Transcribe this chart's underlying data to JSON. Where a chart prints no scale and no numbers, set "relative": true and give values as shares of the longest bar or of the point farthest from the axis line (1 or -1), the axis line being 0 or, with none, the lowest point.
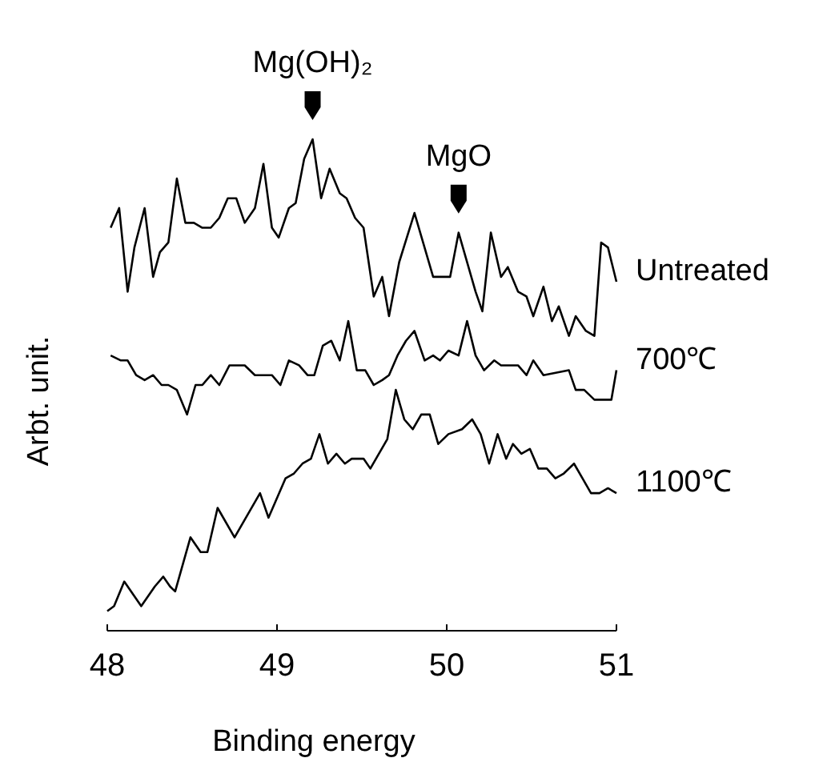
{
  "chart_data": {
    "type": "line",
    "relative": true,
    "xlabel": "Binding energy",
    "ylabel": "Arbt. unit.",
    "xlim": [
      48,
      51
    ],
    "xticks": [
      48,
      49,
      50,
      51
    ],
    "annotations": [
      {
        "text": "Mg(OH)₂",
        "x": 49.21,
        "y": 1.0
      },
      {
        "text": "MgO",
        "x": 50.07,
        "y": 0.81
      }
    ],
    "series": [
      {
        "name": "Untreated",
        "color": "#000000",
        "x": [
          48.02,
          48.07,
          48.12,
          48.16,
          48.22,
          48.27,
          48.31,
          48.36,
          48.41,
          48.46,
          48.51,
          48.56,
          48.61,
          48.66,
          48.71,
          48.76,
          48.81,
          48.87,
          48.92,
          48.97,
          49.01,
          49.07,
          49.11,
          49.16,
          49.21,
          49.26,
          49.31,
          49.37,
          49.41,
          49.46,
          49.51,
          49.57,
          49.62,
          49.66,
          49.72,
          49.81,
          49.92,
          50.02,
          50.07,
          50.17,
          50.21,
          50.26,
          50.32,
          50.36,
          50.42,
          50.47,
          50.51,
          50.57,
          50.62,
          50.66,
          50.72,
          50.76,
          50.82,
          50.87,
          50.91,
          50.95,
          51.0
        ],
        "values": [
          0.82,
          0.86,
          0.69,
          0.78,
          0.86,
          0.72,
          0.77,
          0.79,
          0.92,
          0.83,
          0.83,
          0.82,
          0.82,
          0.84,
          0.88,
          0.88,
          0.83,
          0.86,
          0.95,
          0.82,
          0.8,
          0.86,
          0.87,
          0.96,
          1.0,
          0.88,
          0.94,
          0.89,
          0.88,
          0.84,
          0.82,
          0.68,
          0.72,
          0.64,
          0.75,
          0.85,
          0.72,
          0.72,
          0.81,
          0.69,
          0.65,
          0.81,
          0.72,
          0.74,
          0.69,
          0.68,
          0.64,
          0.7,
          0.63,
          0.66,
          0.6,
          0.64,
          0.61,
          0.6,
          0.79,
          0.78,
          0.71
        ]
      },
      {
        "name": "700℃",
        "color": "#000000",
        "x": [
          48.02,
          48.08,
          48.12,
          48.17,
          48.22,
          48.27,
          48.32,
          48.36,
          48.41,
          48.47,
          48.52,
          48.56,
          48.61,
          48.66,
          48.72,
          48.77,
          48.81,
          48.87,
          48.92,
          48.97,
          49.02,
          49.07,
          49.13,
          49.18,
          49.22,
          49.27,
          49.32,
          49.37,
          49.42,
          49.47,
          49.52,
          49.57,
          49.62,
          49.66,
          49.71,
          49.76,
          49.81,
          49.87,
          49.92,
          49.96,
          50.01,
          50.07,
          50.12,
          50.17,
          50.22,
          50.28,
          50.32,
          50.42,
          50.47,
          50.51,
          50.57,
          50.72,
          50.76,
          50.81,
          50.87,
          50.91,
          50.97,
          51.0
        ],
        "values": [
          0.56,
          0.55,
          0.55,
          0.52,
          0.51,
          0.52,
          0.5,
          0.5,
          0.49,
          0.44,
          0.5,
          0.5,
          0.52,
          0.5,
          0.54,
          0.54,
          0.54,
          0.52,
          0.52,
          0.52,
          0.5,
          0.55,
          0.54,
          0.52,
          0.52,
          0.58,
          0.59,
          0.55,
          0.63,
          0.53,
          0.53,
          0.5,
          0.51,
          0.52,
          0.56,
          0.59,
          0.61,
          0.55,
          0.56,
          0.55,
          0.57,
          0.56,
          0.63,
          0.56,
          0.53,
          0.55,
          0.54,
          0.54,
          0.52,
          0.55,
          0.52,
          0.53,
          0.49,
          0.49,
          0.47,
          0.47,
          0.47,
          0.53
        ]
      },
      {
        "name": "1100℃",
        "color": "#000000",
        "x": [
          48.0,
          48.04,
          48.1,
          48.2,
          48.28,
          48.33,
          48.37,
          48.4,
          48.49,
          48.55,
          48.59,
          48.65,
          48.75,
          48.9,
          48.95,
          49.05,
          49.1,
          49.15,
          49.2,
          49.25,
          49.3,
          49.35,
          49.4,
          49.44,
          49.51,
          49.55,
          49.65,
          49.7,
          49.75,
          49.8,
          49.85,
          49.9,
          49.95,
          50.01,
          50.09,
          50.15,
          50.2,
          50.25,
          50.3,
          50.35,
          50.39,
          50.44,
          50.49,
          50.54,
          50.59,
          50.64,
          50.69,
          50.75,
          50.8,
          50.85,
          50.9,
          50.95,
          51.0
        ],
        "values": [
          0.04,
          0.05,
          0.1,
          0.05,
          0.09,
          0.11,
          0.09,
          0.08,
          0.19,
          0.16,
          0.16,
          0.25,
          0.19,
          0.28,
          0.23,
          0.31,
          0.32,
          0.34,
          0.35,
          0.4,
          0.34,
          0.36,
          0.34,
          0.35,
          0.35,
          0.33,
          0.39,
          0.49,
          0.43,
          0.41,
          0.44,
          0.44,
          0.38,
          0.4,
          0.41,
          0.43,
          0.4,
          0.34,
          0.4,
          0.35,
          0.38,
          0.36,
          0.37,
          0.33,
          0.33,
          0.31,
          0.32,
          0.34,
          0.31,
          0.28,
          0.28,
          0.29,
          0.28
        ]
      }
    ]
  }
}
